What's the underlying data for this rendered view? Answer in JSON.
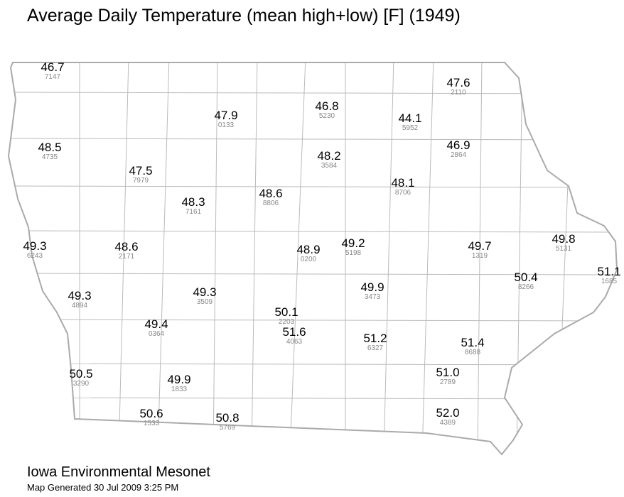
{
  "title": "Average Daily Temperature (mean high+low) [F] (1949)",
  "stations": [
    {
      "value": "46.7",
      "id": "7147"
    },
    {
      "value": "47.9",
      "id": "0133"
    },
    {
      "value": "46.8",
      "id": "5230"
    },
    {
      "value": "44.1",
      "id": "5952"
    },
    {
      "value": "47.6",
      "id": "2110"
    },
    {
      "value": "48.5",
      "id": "4735"
    },
    {
      "value": "47.5",
      "id": "7979"
    },
    {
      "value": "48.2",
      "id": "3584"
    },
    {
      "value": "46.9",
      "id": "2864"
    },
    {
      "value": "48.3",
      "id": "7161"
    },
    {
      "value": "48.6",
      "id": "8806"
    },
    {
      "value": "48.1",
      "id": "8706"
    },
    {
      "value": "49.3",
      "id": "6243"
    },
    {
      "value": "48.6",
      "id": "2171"
    },
    {
      "value": "48.9",
      "id": "0200"
    },
    {
      "value": "49.2",
      "id": "5198"
    },
    {
      "value": "49.7",
      "id": "1319"
    },
    {
      "value": "49.8",
      "id": "5131"
    },
    {
      "value": "50.4",
      "id": "8266"
    },
    {
      "value": "51.1",
      "id": "1685"
    },
    {
      "value": "49.3",
      "id": "4894"
    },
    {
      "value": "49.3",
      "id": "3509"
    },
    {
      "value": "49.9",
      "id": "3473"
    },
    {
      "value": "50.1",
      "id": "2203"
    },
    {
      "value": "49.4",
      "id": "0364"
    },
    {
      "value": "51.6",
      "id": "4063"
    },
    {
      "value": "51.2",
      "id": "6327"
    },
    {
      "value": "51.4",
      "id": "8688"
    },
    {
      "value": "50.5",
      "id": "3290"
    },
    {
      "value": "49.9",
      "id": "1833"
    },
    {
      "value": "51.0",
      "id": "2789"
    },
    {
      "value": "50.6",
      "id": "1533"
    },
    {
      "value": "50.8",
      "id": "5769"
    },
    {
      "value": "52.0",
      "id": "4389"
    }
  ],
  "footer": {
    "organization": "Iowa Environmental Mesonet",
    "generated": "Map Generated 30 Jul 2009 3:25 PM"
  }
}
